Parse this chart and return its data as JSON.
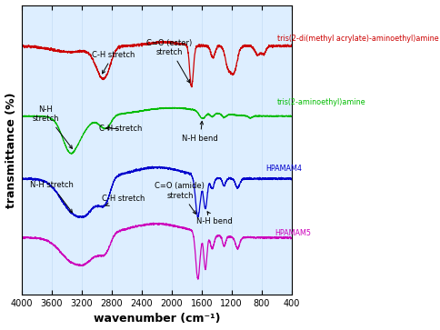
{
  "xlabel": "wavenumber (cm⁻¹)",
  "ylabel": "transmittance (%)",
  "xlim": [
    4000,
    400
  ],
  "background_color": "#ffffff",
  "plot_bg": "#ddeeff",
  "colors": {
    "red": "#cc0000",
    "green": "#00bb00",
    "blue": "#0000cc",
    "magenta": "#cc00bb"
  },
  "labels": {
    "red": "tris(2-di(methyl acrylate)-aminoethyl)amine",
    "green": "tris(2-aminoethyl)amine",
    "blue": "HPAMAM4",
    "magenta": "HPAMAM5"
  }
}
